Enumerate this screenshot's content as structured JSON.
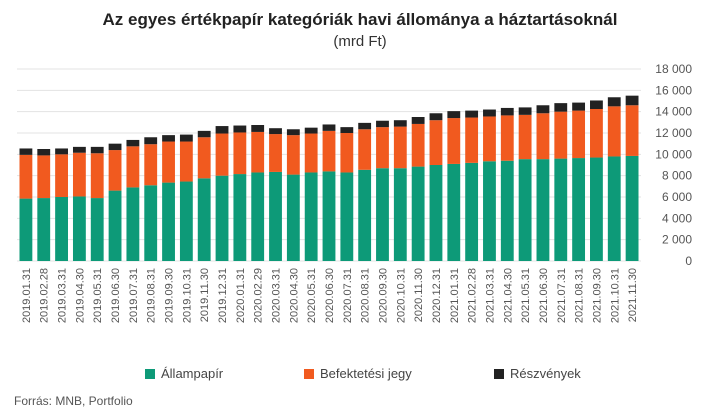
{
  "title": "Az egyes értékpapír kategóriák havi állománya a háztartásoknál",
  "subtitle": "(mrd Ft)",
  "source": "Forrás: MNB, Portfolio",
  "chart_data": {
    "type": "bar",
    "stacked": true,
    "categories": [
      "2019.01.31",
      "2019.02.28",
      "2019.03.31",
      "2019.04.30",
      "2019.05.31",
      "2019.06.30",
      "2019.07.31",
      "2019.08.31",
      "2019.09.30",
      "2019.10.31",
      "2019.11.30",
      "2019.12.31",
      "2020.01.31",
      "2020.02.29",
      "2020.03.31",
      "2020.04.30",
      "2020.05.31",
      "2020.06.30",
      "2020.07.31",
      "2020.08.31",
      "2020.09.30",
      "2020.10.31",
      "2020.11.30",
      "2020.12.31",
      "2021.01.31",
      "2021.02.28",
      "2021.03.31",
      "2021.04.30",
      "2021.05.31",
      "2021.06.30",
      "2021.07.31",
      "2021.08.31",
      "2021.09.30",
      "2021.10.31",
      "2021.11.30"
    ],
    "series": [
      {
        "name": "Állampapír",
        "color": "#0d9a78",
        "values": [
          5850,
          5900,
          6000,
          6050,
          5900,
          6600,
          6900,
          7100,
          7350,
          7450,
          7750,
          8000,
          8150,
          8300,
          8350,
          8100,
          8300,
          8400,
          8300,
          8550,
          8700,
          8700,
          8850,
          9000,
          9100,
          9200,
          9350,
          9400,
          9550,
          9550,
          9600,
          9650,
          9700,
          9800,
          9850
        ]
      },
      {
        "name": "Befektetési jegy",
        "color": "#f15a1f",
        "values": [
          4100,
          4000,
          4000,
          4100,
          4200,
          3800,
          3850,
          3850,
          3850,
          3750,
          3850,
          3950,
          3900,
          3800,
          3550,
          3700,
          3650,
          3800,
          3700,
          3800,
          3850,
          3900,
          4000,
          4200,
          4300,
          4250,
          4200,
          4250,
          4150,
          4300,
          4400,
          4450,
          4550,
          4700,
          4750
        ]
      },
      {
        "name": "Részvények",
        "color": "#222222",
        "values": [
          600,
          600,
          550,
          550,
          600,
          600,
          600,
          650,
          600,
          650,
          600,
          700,
          650,
          650,
          550,
          550,
          550,
          600,
          550,
          600,
          600,
          600,
          650,
          650,
          650,
          650,
          650,
          700,
          700,
          750,
          800,
          750,
          800,
          850,
          900
        ]
      }
    ],
    "ylim": [
      0,
      18000
    ],
    "yticks": [
      0,
      2000,
      4000,
      6000,
      8000,
      10000,
      12000,
      14000,
      16000,
      18000
    ],
    "ytick_labels": [
      "0",
      "2 000",
      "4 000",
      "6 000",
      "8 000",
      "10 000",
      "12 000",
      "14 000",
      "16 000",
      "18 000"
    ],
    "y_axis_position": "right",
    "grid": true,
    "legend": "bottom"
  }
}
